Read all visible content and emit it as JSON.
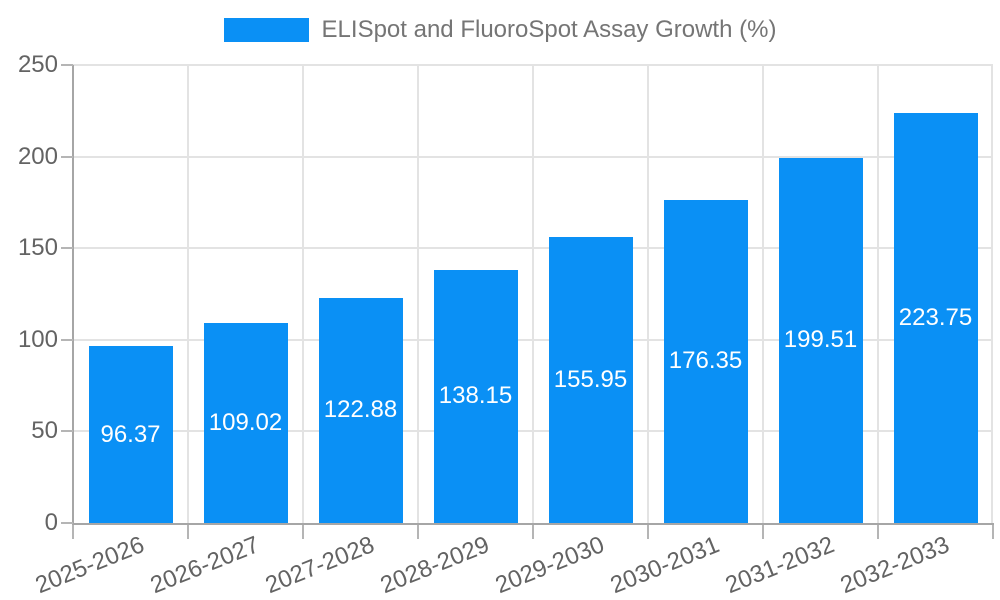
{
  "chart_data": {
    "type": "bar",
    "title": "ELISpot and FluoroSpot Assay Growth (%)",
    "categories": [
      "2025-2026",
      "2026-2027",
      "2027-2028",
      "2028-2029",
      "2029-2030",
      "2030-2031",
      "2031-2032",
      "2032-2033"
    ],
    "values": [
      96.37,
      109.02,
      122.88,
      138.15,
      155.95,
      176.35,
      199.51,
      223.75
    ],
    "value_labels": [
      "96.37",
      "109.02",
      "122.88",
      "138.15",
      "155.95",
      "176.35",
      "199.51",
      "223.75"
    ],
    "xlabel": "",
    "ylabel": "",
    "ylim": [
      0,
      250
    ],
    "yticks": [
      0,
      50,
      100,
      150,
      200,
      250
    ],
    "grid": true,
    "legend_position": "top",
    "colors": {
      "bar": "#0a90f5",
      "value_label": "#ffffff",
      "grid_line": "#e3e3e3",
      "axis_line": "#a6a6a6",
      "tick_mark": "#b5b5b5",
      "tick_label": "#636363",
      "legend_text": "#757575",
      "background": "#ffffff"
    }
  }
}
